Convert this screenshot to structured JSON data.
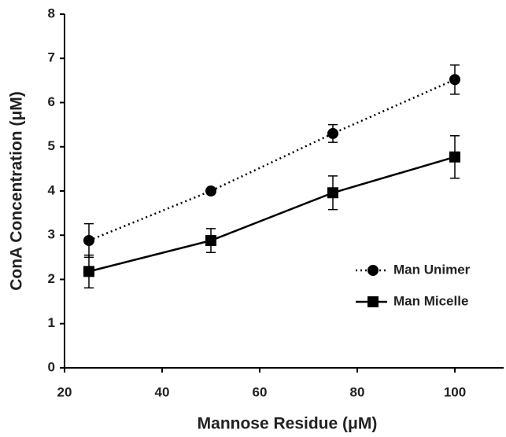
{
  "chart_data": {
    "type": "line",
    "xlabel": "Mannose Residue (μM)",
    "ylabel": "ConA Concentration (μM)",
    "x": [
      25,
      50,
      75,
      100
    ],
    "series": [
      {
        "name": "Man Unimer",
        "color": "#000000",
        "dash": "dotted",
        "marker": "circle",
        "values": [
          2.88,
          4.0,
          5.3,
          6.52
        ],
        "errors": [
          0.38,
          0.05,
          0.2,
          0.33
        ]
      },
      {
        "name": "Man Micelle",
        "color": "#000000",
        "dash": "solid",
        "marker": "square",
        "values": [
          2.18,
          2.88,
          3.96,
          4.77
        ],
        "errors": [
          0.37,
          0.27,
          0.38,
          0.48
        ]
      }
    ],
    "xlim": [
      20,
      110
    ],
    "xticks": [
      20,
      40,
      60,
      80,
      100
    ],
    "ylim": [
      0,
      8
    ],
    "yticks": [
      0,
      1,
      2,
      3,
      4,
      5,
      6,
      7,
      8
    ],
    "grid": false,
    "legend": "right"
  }
}
